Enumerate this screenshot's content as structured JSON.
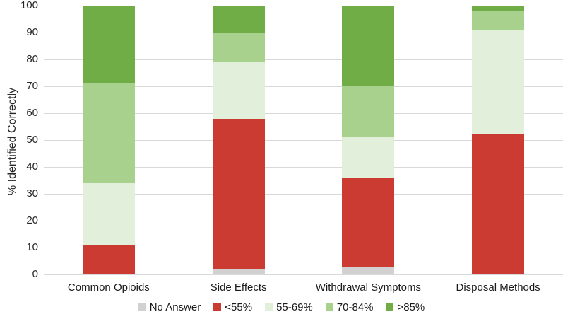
{
  "chart_data": {
    "type": "bar",
    "stacked": true,
    "title": "",
    "xlabel": "",
    "ylabel": "% Identified Correctly",
    "ylim": [
      0,
      100
    ],
    "yticks": [
      0,
      10,
      20,
      30,
      40,
      50,
      60,
      70,
      80,
      90,
      100
    ],
    "grid": true,
    "legend_position": "bottom",
    "categories": [
      "Common Opioids",
      "Side Effects",
      "Withdrawal Symptoms",
      "Disposal Methods"
    ],
    "series": [
      {
        "name": "No Answer",
        "color": "#d2d0d0",
        "values": [
          0,
          2,
          3,
          0
        ]
      },
      {
        "name": "<55%",
        "color": "#cb3b32",
        "values": [
          11,
          56,
          33,
          52
        ]
      },
      {
        "name": "55-69%",
        "color": "#e2efda",
        "values": [
          23,
          21,
          15,
          39
        ]
      },
      {
        "name": "70-84%",
        "color": "#a9d18e",
        "values": [
          37,
          11,
          19,
          7
        ]
      },
      {
        "name": ">85%",
        "color": "#70ad47",
        "values": [
          29,
          10,
          30,
          2
        ]
      }
    ],
    "gridline_color": "#d9d9d9",
    "text_color": "#262626"
  }
}
